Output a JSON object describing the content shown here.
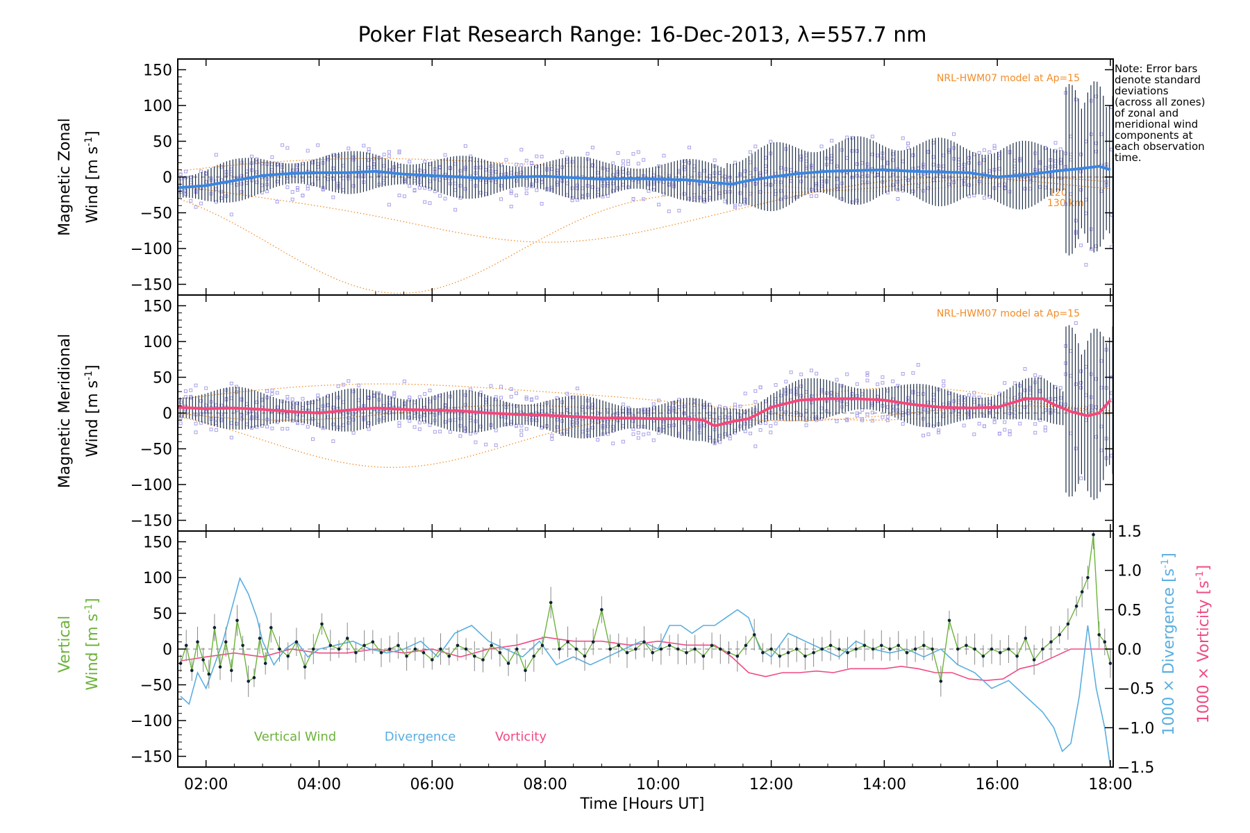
{
  "title": "Poker Flat Research Range: 16-Dec-2013, λ=557.7 nm",
  "note_lines": [
    "Note: Error bars",
    "denote standard",
    "deviations",
    "(across all zones)",
    "of zonal and",
    "meridional wind",
    "components at",
    "each observation",
    "time."
  ],
  "model_label": "NRL-HWM07 model at Ap=15",
  "model_alt_labels": [
    "120",
    "130 km"
  ],
  "xlabel": "Time [Hours UT]",
  "x_ticks": [
    "02:00",
    "04:00",
    "06:00",
    "08:00",
    "10:00",
    "12:00",
    "14:00",
    "16:00",
    "18:00"
  ],
  "y_ticks": [
    "150",
    "100",
    "50",
    "0",
    "−50",
    "−100",
    "−150"
  ],
  "y2_ticks": [
    "1.5",
    "1.0",
    "0.5",
    "0.0",
    "−0.5",
    "−1.0",
    "−1.5"
  ],
  "colors": {
    "zonal": "#3a86e0",
    "meridional": "#f5477a",
    "vertical": "#6bb33a",
    "divergence": "#5aaee0",
    "vorticity": "#f04b84",
    "model": "#f28c28",
    "scatter": "#a7a0e6"
  },
  "chart_data": [
    {
      "type": "line",
      "panel": "zonal",
      "ylabel_line1": "Magnetic Zonal",
      "ylabel_line2": "Wind [m s",
      "ylabel_sup": "-1",
      "ylabel_close": "]",
      "ylim": [
        -165,
        165
      ],
      "xlim": [
        1.5,
        18.05
      ],
      "series": [
        {
          "name": "Zonal mean wind",
          "x": [
            1.5,
            2.0,
            2.5,
            3.0,
            3.5,
            4.0,
            4.5,
            5.0,
            5.5,
            6.0,
            6.5,
            7.0,
            7.5,
            8.0,
            8.5,
            9.0,
            9.5,
            10.0,
            10.5,
            11.0,
            11.3,
            11.6,
            12.0,
            12.5,
            13.0,
            13.5,
            14.0,
            14.5,
            15.0,
            15.5,
            16.0,
            16.5,
            17.0,
            17.5,
            17.8,
            18.0
          ],
          "y": [
            -15,
            -12,
            -5,
            2,
            5,
            6,
            6,
            8,
            4,
            2,
            0,
            -2,
            0,
            1,
            -1,
            -3,
            -2,
            -3,
            -4,
            -8,
            -10,
            -5,
            0,
            5,
            8,
            9,
            10,
            8,
            7,
            6,
            0,
            3,
            8,
            12,
            15,
            10
          ]
        }
      ]
    },
    {
      "type": "line",
      "panel": "meridional",
      "ylabel_line1": "Magnetic Meridional",
      "ylabel_line2": "Wind [m s",
      "ylabel_sup": "-1",
      "ylabel_close": "]",
      "ylim": [
        -165,
        165
      ],
      "xlim": [
        1.5,
        18.05
      ],
      "series": [
        {
          "name": "Meridional mean wind",
          "x": [
            1.5,
            2.0,
            2.5,
            3.0,
            3.5,
            4.0,
            4.5,
            5.0,
            5.5,
            6.0,
            6.5,
            7.0,
            7.5,
            8.0,
            8.5,
            9.0,
            9.5,
            10.0,
            10.5,
            10.8,
            11.0,
            11.3,
            11.6,
            12.0,
            12.5,
            13.0,
            13.5,
            14.0,
            14.5,
            15.0,
            15.5,
            16.0,
            16.5,
            16.8,
            17.0,
            17.3,
            17.6,
            17.8,
            18.0
          ],
          "y": [
            8,
            6,
            7,
            5,
            2,
            0,
            4,
            7,
            5,
            4,
            3,
            0,
            -2,
            -3,
            -5,
            -7,
            -7,
            -8,
            -8,
            -10,
            -18,
            -12,
            -8,
            8,
            18,
            20,
            20,
            18,
            12,
            8,
            7,
            8,
            20,
            20,
            12,
            2,
            -4,
            0,
            18
          ]
        }
      ]
    },
    {
      "type": "line",
      "panel": "vertical",
      "ylabel_line1": "Vertical",
      "ylabel_line2": "Wind [m s",
      "ylabel_sup": "-1",
      "ylabel_close": "]",
      "y2label_div": "1000 × Divergence [s",
      "y2label_vort": "1000 × Vorticity [s",
      "y2label_sup": "-1",
      "y2label_close": "]",
      "ylim": [
        -165,
        165
      ],
      "y2lim": [
        -1.5,
        1.5
      ],
      "xlim": [
        1.5,
        18.05
      ],
      "legend": [
        "Vertical Wind",
        "Divergence",
        "Vorticity"
      ],
      "series": [
        {
          "name": "Vertical Wind",
          "axis": "left",
          "x": [
            1.55,
            1.65,
            1.75,
            1.85,
            1.95,
            2.05,
            2.15,
            2.25,
            2.35,
            2.45,
            2.55,
            2.65,
            2.75,
            2.85,
            2.95,
            3.05,
            3.15,
            3.3,
            3.45,
            3.6,
            3.75,
            3.9,
            4.05,
            4.2,
            4.35,
            4.5,
            4.65,
            4.8,
            4.95,
            5.1,
            5.25,
            5.4,
            5.55,
            5.7,
            5.85,
            6.0,
            6.15,
            6.3,
            6.45,
            6.6,
            6.75,
            6.9,
            7.05,
            7.2,
            7.35,
            7.5,
            7.65,
            7.8,
            7.95,
            8.1,
            8.25,
            8.4,
            8.55,
            8.7,
            8.85,
            9.0,
            9.15,
            9.3,
            9.45,
            9.6,
            9.75,
            9.9,
            10.05,
            10.2,
            10.35,
            10.5,
            10.65,
            10.8,
            10.95,
            11.1,
            11.25,
            11.4,
            11.55,
            11.7,
            11.85,
            12.0,
            12.15,
            12.3,
            12.45,
            12.6,
            12.75,
            12.9,
            13.05,
            13.2,
            13.35,
            13.5,
            13.65,
            13.8,
            13.95,
            14.1,
            14.25,
            14.4,
            14.55,
            14.7,
            14.85,
            15.0,
            15.15,
            15.3,
            15.45,
            15.6,
            15.75,
            15.9,
            16.05,
            16.2,
            16.35,
            16.5,
            16.65,
            16.8,
            16.95,
            17.1,
            17.25,
            17.4,
            17.5,
            17.6,
            17.7,
            17.8,
            17.9,
            18.0
          ],
          "y": [
            -20,
            5,
            -30,
            10,
            -15,
            -35,
            30,
            -25,
            10,
            -30,
            40,
            5,
            -45,
            -40,
            15,
            -20,
            30,
            0,
            -10,
            10,
            -25,
            0,
            35,
            5,
            0,
            15,
            -5,
            5,
            10,
            -5,
            0,
            5,
            -10,
            0,
            -5,
            -15,
            0,
            -10,
            5,
            0,
            -10,
            -15,
            5,
            -5,
            -20,
            0,
            -30,
            -10,
            5,
            65,
            0,
            10,
            0,
            -10,
            10,
            55,
            0,
            5,
            -5,
            0,
            10,
            -5,
            0,
            5,
            0,
            -5,
            0,
            -10,
            5,
            0,
            -5,
            -10,
            5,
            20,
            -5,
            0,
            -10,
            -5,
            0,
            -10,
            -5,
            0,
            5,
            0,
            -5,
            0,
            5,
            0,
            5,
            0,
            5,
            -5,
            0,
            5,
            0,
            -45,
            40,
            0,
            5,
            0,
            -10,
            0,
            -5,
            0,
            -10,
            15,
            -15,
            0,
            10,
            20,
            35,
            60,
            80,
            100,
            160,
            20,
            10,
            -20
          ]
        },
        {
          "name": "Divergence",
          "axis": "right",
          "x": [
            1.55,
            1.7,
            1.85,
            2.0,
            2.15,
            2.3,
            2.45,
            2.6,
            2.75,
            2.9,
            3.0,
            3.2,
            3.4,
            3.6,
            3.8,
            4.0,
            4.3,
            4.6,
            4.9,
            5.2,
            5.5,
            5.8,
            6.1,
            6.4,
            6.7,
            7.0,
            7.3,
            7.6,
            7.9,
            8.2,
            8.5,
            8.8,
            9.1,
            9.4,
            9.7,
            10.0,
            10.2,
            10.4,
            10.6,
            10.8,
            11.0,
            11.2,
            11.4,
            11.6,
            11.8,
            12.0,
            12.3,
            12.6,
            12.9,
            13.2,
            13.5,
            13.8,
            14.1,
            14.4,
            14.7,
            15.0,
            15.3,
            15.6,
            15.9,
            16.2,
            16.5,
            16.8,
            17.0,
            17.15,
            17.3,
            17.45,
            17.6,
            17.75,
            17.9,
            18.0
          ],
          "y": [
            -0.6,
            -0.7,
            -0.3,
            -0.5,
            -0.2,
            0.1,
            0.5,
            0.9,
            0.7,
            0.4,
            0.1,
            -0.2,
            0.0,
            0.1,
            -0.1,
            0.0,
            0.05,
            0.1,
            0.0,
            -0.05,
            0.0,
            0.1,
            -0.1,
            0.2,
            0.3,
            0.1,
            0.0,
            -0.1,
            0.1,
            -0.2,
            -0.1,
            -0.2,
            -0.1,
            0.0,
            0.1,
            0.0,
            0.3,
            0.3,
            0.2,
            0.3,
            0.3,
            0.4,
            0.5,
            0.4,
            0.0,
            -0.1,
            0.2,
            0.1,
            0.0,
            -0.1,
            0.1,
            0.0,
            -0.05,
            0.0,
            -0.1,
            0.0,
            -0.2,
            -0.3,
            -0.5,
            -0.4,
            -0.6,
            -0.8,
            -1.0,
            -1.3,
            -1.2,
            -0.6,
            0.3,
            -0.5,
            -1.0,
            -1.5
          ]
        },
        {
          "name": "Vorticity",
          "axis": "right",
          "x": [
            1.55,
            2.0,
            2.5,
            3.0,
            3.5,
            4.0,
            4.5,
            5.0,
            5.5,
            6.0,
            6.5,
            7.0,
            7.5,
            8.0,
            8.5,
            9.0,
            9.5,
            10.0,
            10.5,
            11.0,
            11.3,
            11.6,
            11.9,
            12.2,
            12.5,
            12.8,
            13.1,
            13.4,
            13.7,
            14.0,
            14.3,
            14.6,
            14.9,
            15.2,
            15.5,
            15.8,
            16.1,
            16.4,
            16.7,
            17.0,
            17.3,
            17.6,
            17.8,
            18.0
          ],
          "y": [
            -0.15,
            -0.1,
            -0.05,
            -0.1,
            0.0,
            -0.05,
            -0.05,
            0.0,
            -0.05,
            0.0,
            -0.1,
            0.0,
            0.05,
            0.15,
            0.1,
            0.1,
            0.05,
            0.1,
            0.05,
            0.05,
            -0.1,
            -0.3,
            -0.35,
            -0.3,
            -0.3,
            -0.28,
            -0.3,
            -0.25,
            -0.25,
            -0.25,
            -0.22,
            -0.25,
            -0.3,
            -0.3,
            -0.38,
            -0.4,
            -0.38,
            -0.25,
            -0.2,
            -0.1,
            0.0,
            0.0,
            0.0,
            0.0
          ]
        }
      ]
    }
  ]
}
